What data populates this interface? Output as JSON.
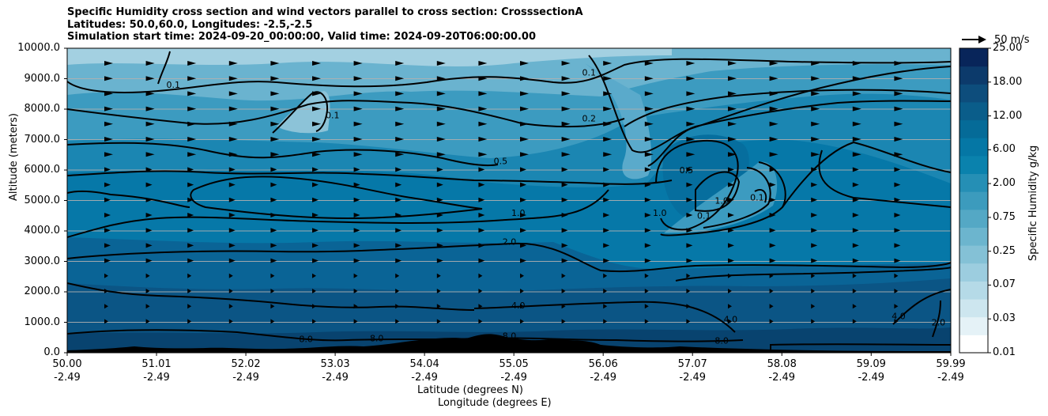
{
  "title": {
    "line1": "Specific Humidity cross section and wind vectors parallel to cross section: CrosssectionA",
    "line2": "Latitudes: 50.0,60.0, Longitudes: -2.5,-2.5",
    "line3": "Simulation start time: 2024-09-20_00:00:00, Valid time: 2024-09-20T06:00:00.00"
  },
  "axes": {
    "ylabel": "Altitude (meters)",
    "xlabel_lat": "Latitude (degrees N)",
    "xlabel_lon": "Longitude (degrees E)",
    "yticks": [
      "10000.0",
      "9000.0",
      "8000.0",
      "7000.0",
      "6000.0",
      "5000.0",
      "4000.0",
      "3000.0",
      "2000.0",
      "1000.0",
      "0.0"
    ],
    "xticks": [
      {
        "lat": "50.00",
        "lon": "-2.49"
      },
      {
        "lat": "51.01",
        "lon": "-2.49"
      },
      {
        "lat": "52.02",
        "lon": "-2.49"
      },
      {
        "lat": "53.03",
        "lon": "-2.49"
      },
      {
        "lat": "54.04",
        "lon": "-2.49"
      },
      {
        "lat": "55.05",
        "lon": "-2.49"
      },
      {
        "lat": "56.06",
        "lon": "-2.49"
      },
      {
        "lat": "57.07",
        "lon": "-2.49"
      },
      {
        "lat": "58.08",
        "lon": "-2.49"
      },
      {
        "lat": "59.09",
        "lon": "-2.49"
      },
      {
        "lat": "59.99",
        "lon": "-2.49"
      }
    ]
  },
  "colorbar": {
    "label": "Specific Humidity g/kg",
    "ticks": [
      "25.00",
      "18.00",
      "12.00",
      "6.00",
      "2.00",
      "0.75",
      "0.25",
      "0.07",
      "0.03",
      "0.01"
    ]
  },
  "vector_key": {
    "label": "50 m/s"
  },
  "chart_data": {
    "type": "contourf",
    "title": "Specific Humidity cross section and wind vectors parallel to cross section: CrosssectionA",
    "xlabel": "Latitude (degrees N) / Longitude (degrees E)",
    "ylabel": "Altitude (meters)",
    "xlim": [
      50.0,
      59.99
    ],
    "ylim": [
      0,
      10000
    ],
    "grid": "horizontal",
    "colorbar_levels": [
      0.01,
      0.02,
      0.03,
      0.05,
      0.07,
      0.1,
      0.25,
      0.5,
      0.75,
      1.0,
      2.0,
      4.0,
      6.0,
      8.0,
      12.0,
      18.0,
      25.0
    ],
    "contour_lines": [
      {
        "value": "0.1",
        "height_m": 9000
      },
      {
        "value": "0.2",
        "height_m": 7500
      },
      {
        "value": "0.5",
        "height_m": 6300
      },
      {
        "value": "1.0",
        "height_m": 4600
      },
      {
        "value": "2.0",
        "height_m": 3500
      },
      {
        "value": "4.0",
        "height_m": 1500
      },
      {
        "value": "8.0",
        "height_m": 400
      }
    ],
    "contour_labels": [
      {
        "text": "0.1",
        "lat": 51.2,
        "alt": 8700
      },
      {
        "text": "0.1",
        "lat": 55.9,
        "alt": 9100
      },
      {
        "text": "0.1",
        "lat": 53.0,
        "alt": 7700
      },
      {
        "text": "0.2",
        "lat": 55.9,
        "alt": 7600
      },
      {
        "text": "0.5",
        "lat": 54.9,
        "alt": 6200
      },
      {
        "text": "0.5",
        "lat": 57.0,
        "alt": 5900
      },
      {
        "text": "1.0",
        "lat": 55.1,
        "alt": 4500
      },
      {
        "text": "1.0",
        "lat": 57.4,
        "alt": 4900
      },
      {
        "text": "1.0",
        "lat": 56.7,
        "alt": 4500
      },
      {
        "text": "0.1",
        "lat": 57.2,
        "alt": 4400
      },
      {
        "text": "0.1",
        "lat": 57.8,
        "alt": 5000
      },
      {
        "text": "2.0",
        "lat": 55.0,
        "alt": 3550
      },
      {
        "text": "4.0",
        "lat": 55.1,
        "alt": 1450
      },
      {
        "text": "4.0",
        "lat": 57.5,
        "alt": 1000
      },
      {
        "text": "4.0",
        "lat": 59.4,
        "alt": 1100
      },
      {
        "text": "2.0",
        "lat": 59.85,
        "alt": 900
      },
      {
        "text": "8.0",
        "lat": 52.7,
        "alt": 350
      },
      {
        "text": "8.0",
        "lat": 53.5,
        "alt": 380
      },
      {
        "text": "8.0",
        "lat": 55.0,
        "alt": 450
      },
      {
        "text": "8.0",
        "lat": 57.4,
        "alt": 300
      }
    ],
    "wind_vectors": "arrows parallel to cross section, pointing toward increasing latitude"
  }
}
